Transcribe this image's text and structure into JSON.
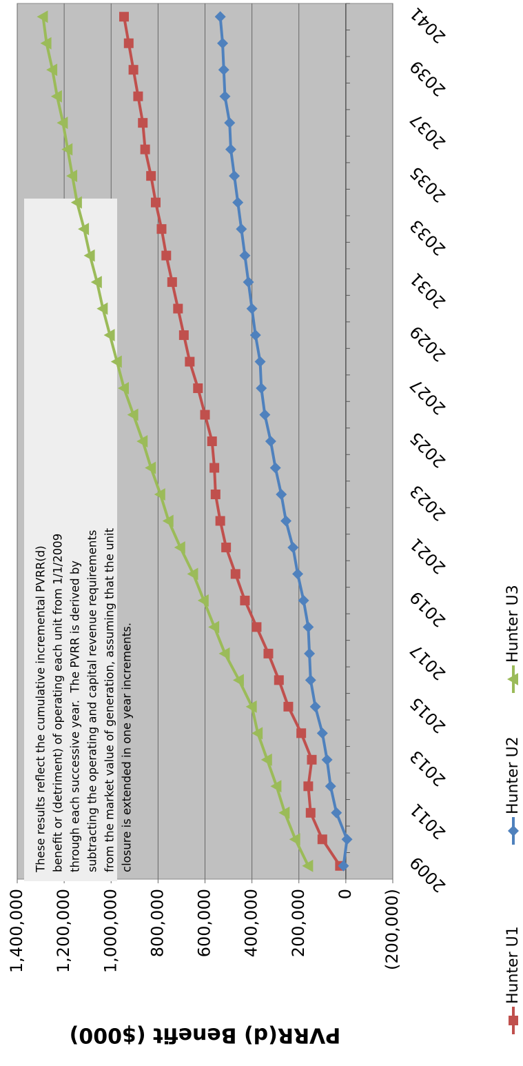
{
  "chart_data": {
    "type": "line",
    "y_label": "PVRR(d) Benefit ($000)",
    "annotation": [
      "These results reflect the cumulative incremental PVRR(d)",
      "benefit or (detriment) of operating each unit from 1/1/2009",
      "through each successive year.  The PVRR is derived by",
      "subtracting the operating and capital revenue requirements",
      "from the market value of generation, assuming that the unit",
      "closure is extended in one year increments."
    ],
    "categories": [
      "2009",
      null,
      "2011",
      null,
      "2013",
      null,
      "2015",
      null,
      "2017",
      null,
      "2019",
      null,
      "2021",
      null,
      "2023",
      null,
      "2025",
      null,
      "2027",
      null,
      "2029",
      null,
      "2031",
      null,
      "2033",
      null,
      "2035",
      null,
      "2037",
      null,
      "2039",
      null,
      "2041"
    ],
    "series": [
      {
        "name": "Hunter U1",
        "color": "#c0504d",
        "marker": "square",
        "values": [
          25000,
          100000,
          150000,
          160000,
          145000,
          190000,
          245000,
          285000,
          330000,
          380000,
          430000,
          470000,
          510000,
          535000,
          555000,
          560000,
          570000,
          600000,
          630000,
          665000,
          690000,
          715000,
          740000,
          765000,
          785000,
          810000,
          830000,
          855000,
          865000,
          885000,
          905000,
          925000,
          945000
        ]
      },
      {
        "name": "Hunter U2",
        "color": "#4f81bd",
        "marker": "diamond",
        "values": [
          10000,
          -5000,
          40000,
          65000,
          80000,
          100000,
          130000,
          150000,
          155000,
          160000,
          180000,
          205000,
          225000,
          255000,
          275000,
          300000,
          320000,
          345000,
          360000,
          365000,
          385000,
          400000,
          415000,
          430000,
          445000,
          460000,
          475000,
          490000,
          495000,
          515000,
          520000,
          525000,
          535000
        ]
      },
      {
        "name": "Hunter U3",
        "color": "#9bbb59",
        "marker": "triangle",
        "values": [
          160000,
          215000,
          260000,
          295000,
          335000,
          375000,
          400000,
          455000,
          515000,
          560000,
          605000,
          650000,
          705000,
          755000,
          790000,
          830000,
          865000,
          905000,
          945000,
          975000,
          1005000,
          1035000,
          1060000,
          1090000,
          1115000,
          1145000,
          1165000,
          1185000,
          1205000,
          1230000,
          1250000,
          1275000,
          1290000
        ]
      }
    ],
    "ylim": [
      -200000,
      1400000
    ],
    "yticks": [
      {
        "value": -200000,
        "label": "(200,000)"
      },
      0,
      {
        "value": 200000,
        "label": "200,000"
      },
      {
        "value": 400000,
        "label": "400,000"
      },
      {
        "value": 600000,
        "label": "600,000"
      },
      {
        "value": 800000,
        "label": "800,000"
      },
      {
        "value": 1000000,
        "label": "1,000,000"
      },
      {
        "value": 1200000,
        "label": "1,200,000"
      },
      {
        "value": 1400000,
        "label": "1,400,000"
      }
    ],
    "grid": true,
    "background": "#c0c0c0",
    "rotation": -90
  }
}
